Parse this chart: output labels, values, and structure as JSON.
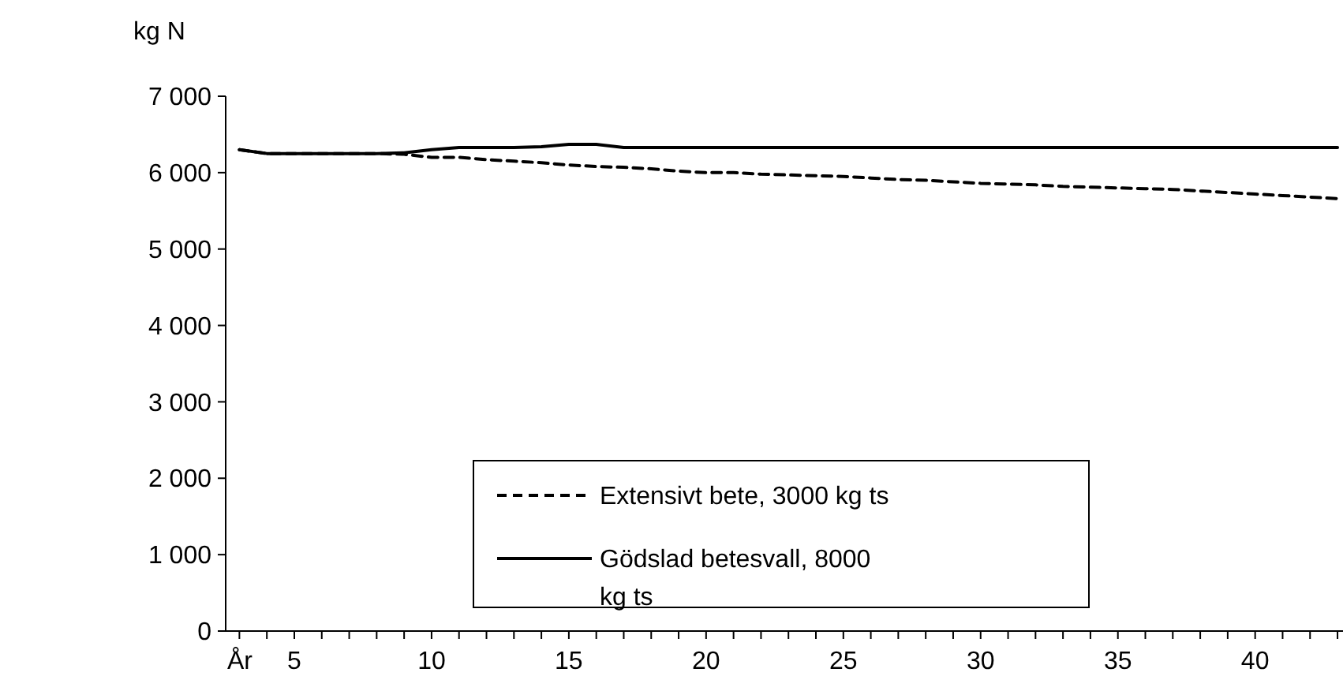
{
  "chart_data": {
    "type": "line",
    "ylabel": "kg N",
    "xlabel": "År",
    "x": [
      3,
      4,
      5,
      6,
      7,
      8,
      9,
      10,
      11,
      12,
      13,
      14,
      15,
      16,
      17,
      18,
      19,
      20,
      21,
      22,
      23,
      24,
      25,
      26,
      27,
      28,
      29,
      30,
      31,
      32,
      33,
      34,
      35,
      36,
      37,
      38,
      39,
      40,
      41,
      42,
      43
    ],
    "series": [
      {
        "name": "Extensivt bete, 3000 kg ts",
        "color": "#000000",
        "line_style": "dashed",
        "values": [
          6300,
          6250,
          6250,
          6250,
          6250,
          6250,
          6240,
          6200,
          6200,
          6170,
          6150,
          6130,
          6100,
          6080,
          6070,
          6050,
          6020,
          6000,
          6000,
          5980,
          5970,
          5960,
          5950,
          5930,
          5910,
          5900,
          5880,
          5860,
          5850,
          5840,
          5820,
          5810,
          5800,
          5790,
          5780,
          5760,
          5740,
          5720,
          5700,
          5680,
          5660
        ]
      },
      {
        "name": "Gödslad betesvall, 8000 kg ts",
        "color": "#000000",
        "line_style": "solid",
        "values": [
          6300,
          6250,
          6250,
          6250,
          6250,
          6250,
          6260,
          6300,
          6330,
          6330,
          6330,
          6340,
          6370,
          6370,
          6330,
          6330,
          6330,
          6330,
          6330,
          6330,
          6330,
          6330,
          6330,
          6330,
          6330,
          6330,
          6330,
          6330,
          6330,
          6330,
          6330,
          6330,
          6330,
          6330,
          6330,
          6330,
          6330,
          6330,
          6330,
          6330,
          6330
        ]
      }
    ],
    "xlim": [
      2.5,
      43.2
    ],
    "xticks": [
      5,
      10,
      15,
      20,
      25,
      30,
      35,
      40
    ],
    "ylim": [
      0,
      7000
    ],
    "yticks": [
      {
        "value": 0,
        "label": "0"
      },
      {
        "value": 1000,
        "label": "1 000"
      },
      {
        "value": 2000,
        "label": "2 000"
      },
      {
        "value": 3000,
        "label": "3 000"
      },
      {
        "value": 4000,
        "label": "4 000"
      },
      {
        "value": 5000,
        "label": "5 000"
      },
      {
        "value": 6000,
        "label": "6 000"
      },
      {
        "value": 7000,
        "label": "7 000"
      }
    ],
    "grid": false,
    "legend": "bottom"
  }
}
